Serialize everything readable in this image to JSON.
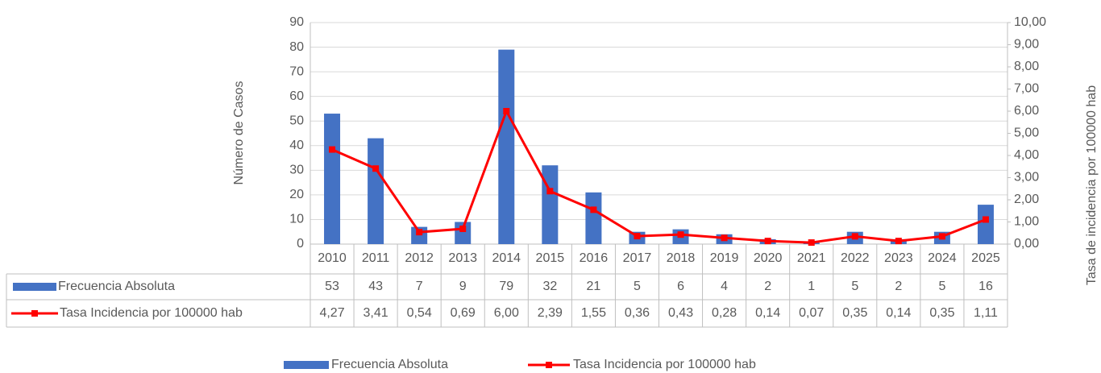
{
  "chart_data": {
    "type": "bar-line",
    "y_label": "Número de Casos",
    "y2_label": "Tasa de incidencia por 100000 hab",
    "categories": [
      "2010",
      "2011",
      "2012",
      "2013",
      "2014",
      "2015",
      "2016",
      "2017",
      "2018",
      "2019",
      "2020",
      "2021",
      "2022",
      "2023",
      "2024",
      "2025"
    ],
    "series": [
      {
        "name": "Frecuencia Absoluta",
        "type": "bar",
        "color": "#4472c4",
        "values": [
          53,
          43,
          7,
          9,
          79,
          32,
          21,
          5,
          6,
          4,
          2,
          1,
          5,
          2,
          5,
          16
        ]
      },
      {
        "name": "Tasa Incidencia por 100000 hab",
        "type": "line",
        "axis": "y2",
        "color": "#ff0000",
        "values": [
          4.27,
          3.41,
          0.54,
          0.69,
          6.0,
          2.39,
          1.55,
          0.36,
          0.43,
          0.28,
          0.14,
          0.07,
          0.35,
          0.14,
          0.35,
          1.11
        ],
        "value_labels": [
          "4,27",
          "3,41",
          "0,54",
          "0,69",
          "6,00",
          "2,39",
          "1,55",
          "0,36",
          "0,43",
          "0,28",
          "0,14",
          "0,07",
          "0,35",
          "0,14",
          "0,35",
          "1,11"
        ]
      }
    ],
    "ylim": [
      0,
      90
    ],
    "yticks": [
      0,
      10,
      20,
      30,
      40,
      50,
      60,
      70,
      80,
      90
    ],
    "y2lim": [
      0,
      10
    ],
    "y2ticks": [
      {
        "value": 0,
        "label": "0,00"
      },
      {
        "value": 1,
        "label": "1,00"
      },
      {
        "value": 2,
        "label": "2,00"
      },
      {
        "value": 3,
        "label": "3,00"
      },
      {
        "value": 4,
        "label": "4,00"
      },
      {
        "value": 5,
        "label": "5,00"
      },
      {
        "value": 6,
        "label": "6,00"
      },
      {
        "value": 7,
        "label": "7,00"
      },
      {
        "value": 8,
        "label": "8,00"
      },
      {
        "value": 9,
        "label": "9,00"
      },
      {
        "value": 10,
        "label": "10,00"
      }
    ],
    "grid": true,
    "legend": "bottom"
  }
}
